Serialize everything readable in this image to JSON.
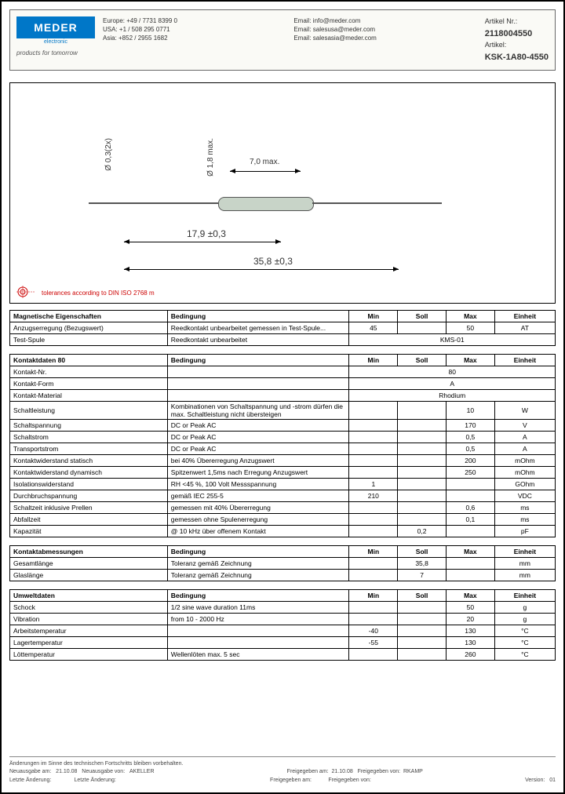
{
  "header": {
    "logo": "MEDER",
    "logo_sub": "electronic",
    "tagline": "products for tomorrow",
    "contacts": {
      "europe": "Europe: +49 / 7731 8399 0",
      "usa": "USA: +1 / 508 295 0771",
      "asia": "Asia: +852 / 2955 1682",
      "email1": "Email: info@meder.com",
      "email2": "Email: salesusa@meder.com",
      "email3": "Email: salesasia@meder.com"
    },
    "article": {
      "nr_label": "Artikel Nr.:",
      "nr": "2118004550",
      "art_label": "Artikel:",
      "art": "KSK-1A80-4550"
    }
  },
  "diagram": {
    "d03": "Ø 0,3(2x)",
    "d18": "Ø 1,8 max.",
    "w70": "7,0 max.",
    "l179": "17,9 ±0,3",
    "l358": "35,8 ±0,3",
    "tolerance": "tolerances according to DIN ISO 2768 m"
  },
  "tables": {
    "magnetic": {
      "title": "Magnetische Eigenschaften",
      "cond": "Bedingung",
      "min": "Min",
      "soll": "Soll",
      "max": "Max",
      "einheit": "Einheit",
      "rows": [
        [
          "Anzugserregung (Bezugswert)",
          "Reedkontakt unbearbeitet gemessen in Test-Spule...",
          "45",
          "",
          "50",
          "AT"
        ],
        [
          "Test-Spule",
          "Reedkontakt unbearbeitet",
          "",
          "KMS-01",
          "",
          ""
        ]
      ]
    },
    "kontakt": {
      "title": "Kontaktdaten  80",
      "rows": [
        [
          "Kontakt-Nr.",
          "",
          "",
          "80",
          "",
          ""
        ],
        [
          "Kontakt-Form",
          "",
          "",
          "A",
          "",
          ""
        ],
        [
          "Kontakt-Material",
          "",
          "",
          "Rhodium",
          "",
          ""
        ],
        [
          "Schaltleistung",
          "Kombinationen von Schaltspannung und -strom dürfen die max. Schaltleistung nicht übersteigen",
          "",
          "",
          "10",
          "W"
        ],
        [
          "Schaltspannung",
          "DC or Peak AC",
          "",
          "",
          "170",
          "V"
        ],
        [
          "Schaltstrom",
          "DC or Peak AC",
          "",
          "",
          "0,5",
          "A"
        ],
        [
          "Transportstrom",
          "DC or Peak AC",
          "",
          "",
          "0,5",
          "A"
        ],
        [
          "Kontaktwiderstand statisch",
          "bei 40% Übererregung Anzugswert",
          "",
          "",
          "200",
          "mOhm"
        ],
        [
          "Kontaktwiderstand dynamisch",
          "Spitzenwert 1,5ms nach Erregung Anzugswert",
          "",
          "",
          "250",
          "mOhm"
        ],
        [
          "Isolationswiderstand",
          "RH <45 %, 100 Volt Messspannung",
          "1",
          "",
          "",
          "GOhm"
        ],
        [
          "Durchbruchspannung",
          "gemäß IEC 255-5",
          "210",
          "",
          "",
          "VDC"
        ],
        [
          "Schaltzeit inklusive Prellen",
          "gemessen mit 40% Übererregung",
          "",
          "",
          "0,6",
          "ms"
        ],
        [
          "Abfallzeit",
          "gemessen ohne Spulenerregung",
          "",
          "",
          "0,1",
          "ms"
        ],
        [
          "Kapazität",
          "@ 10 kHz über offenem Kontakt",
          "",
          "0,2",
          "",
          "pF"
        ]
      ]
    },
    "abm": {
      "title": "Kontaktabmessungen",
      "rows": [
        [
          "Gesamtlänge",
          "Toleranz gemäß Zeichnung",
          "",
          "35,8",
          "",
          "mm"
        ],
        [
          "Glaslänge",
          "Toleranz gemäß Zeichnung",
          "",
          "7",
          "",
          "mm"
        ]
      ]
    },
    "umwelt": {
      "title": "Umweltdaten",
      "rows": [
        [
          "Schock",
          "1/2 sine wave duration 11ms",
          "",
          "",
          "50",
          "g"
        ],
        [
          "Vibration",
          "from 10 - 2000 Hz",
          "",
          "",
          "20",
          "g"
        ],
        [
          "Arbeitstemperatur",
          "",
          "-40",
          "",
          "130",
          "°C"
        ],
        [
          "Lagertemperatur",
          "",
          "-55",
          "",
          "130",
          "°C"
        ],
        [
          "Löttemperatur",
          "Wellenlöten max. 5 sec",
          "",
          "",
          "260",
          "°C"
        ]
      ]
    }
  },
  "footer": {
    "note": "Änderungen im Sinne des technischen Fortschritts bleiben vorbehalten.",
    "neu_am_l": "Neuausgabe am:",
    "neu_am": "21.10.08",
    "neu_von_l": "Neuausgabe von:",
    "neu_von": "AKELLER",
    "frei_am_l": "Freigegeben am:",
    "frei_am": "21.10.08",
    "frei_von_l": "Freigegeben von:",
    "frei_von": "RKAMP",
    "last_l": "Letzte Änderung:",
    "last_by_l": "Letzte Änderung:",
    "frei2_l": "Freigegeben am:",
    "frei2_by_l": "Freigegeben von:",
    "ver_l": "Version:",
    "ver": "01"
  }
}
